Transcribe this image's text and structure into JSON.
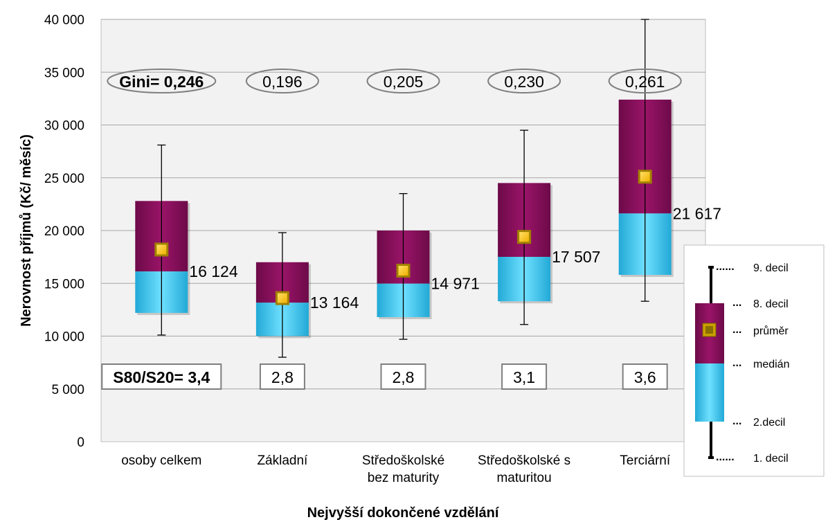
{
  "chart_data": {
    "type": "boxplot",
    "xlabel": "Nejvyšší dokončené vzdělání",
    "ylabel": "Nerovnost příjmů (Kč/ měsíc)",
    "ylim": [
      0,
      40000
    ],
    "yticks": [
      0,
      5000,
      10000,
      15000,
      20000,
      25000,
      30000,
      35000,
      40000
    ],
    "ytick_labels": [
      "0",
      "5 000",
      "10 000",
      "15 000",
      "20 000",
      "25 000",
      "30 000",
      "35 000",
      "40 000"
    ],
    "grid": true,
    "colors": {
      "upper_box": "#8B0E5E",
      "lower_box": "#33C6F0",
      "mean_marker": "#FFC000",
      "ellipse": "#7f7f7f",
      "plot_bg": "#f2f2f2"
    },
    "categories": [
      {
        "label": "osoby celkem",
        "label_lines": [
          "osoby celkem"
        ],
        "decil1": 10100,
        "decil2": 12200,
        "median": 16124,
        "decil8": 22800,
        "decil9": 28100,
        "mean": 18200,
        "median_label": "16 124",
        "gini_label": "Gini= 0,246",
        "s80_label": "S80/S20= 3,4",
        "bold": true
      },
      {
        "label": "Základní",
        "label_lines": [
          "Základní"
        ],
        "decil1": 8000,
        "decil2": 10000,
        "median": 13164,
        "decil8": 17000,
        "decil9": 19800,
        "mean": 13600,
        "median_label": "13 164",
        "gini_label": "0,196",
        "s80_label": "2,8",
        "bold": false
      },
      {
        "label": "Středoškolské bez maturity",
        "label_lines": [
          "Středoškolské",
          "bez maturity"
        ],
        "decil1": 9700,
        "decil2": 11800,
        "median": 14971,
        "decil8": 20000,
        "decil9": 23500,
        "mean": 16200,
        "median_label": "14 971",
        "gini_label": "0,205",
        "s80_label": "2,8",
        "bold": false
      },
      {
        "label": "Středoškolské s maturitou",
        "label_lines": [
          "Středoškolské s",
          "maturitou"
        ],
        "decil1": 11100,
        "decil2": 13300,
        "median": 17507,
        "decil8": 24500,
        "decil9": 29500,
        "mean": 19400,
        "median_label": "17 507",
        "gini_label": "0,230",
        "s80_label": "3,1",
        "bold": false
      },
      {
        "label": "Terciární",
        "label_lines": [
          "Terciární"
        ],
        "decil1": 13300,
        "decil2": 15800,
        "median": 21617,
        "decil8": 32400,
        "decil9": 40000,
        "mean": 25100,
        "median_label": "21 617",
        "gini_label": "0,261",
        "s80_label": "3,6",
        "bold": false
      }
    ],
    "legend": {
      "placement": "right",
      "items": [
        "9. decil",
        "8. decil",
        "průměr",
        "medián",
        "2.decil",
        "1. decil"
      ]
    }
  }
}
